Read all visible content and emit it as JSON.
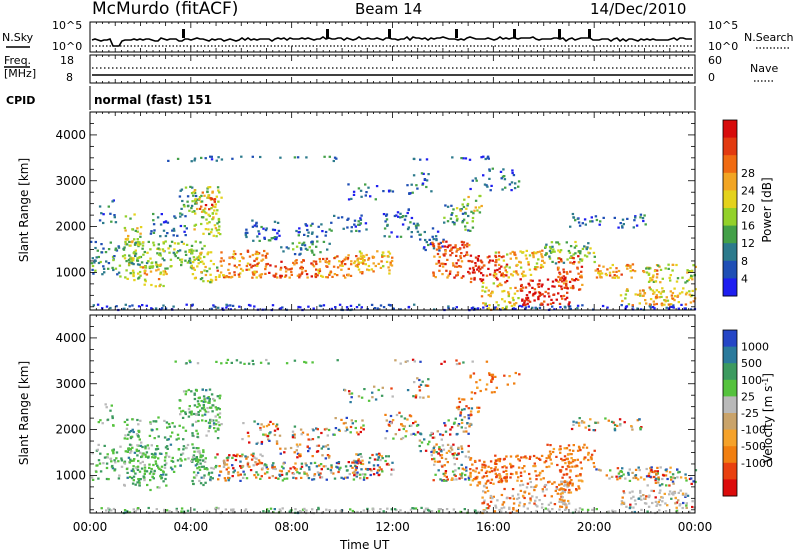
{
  "header": {
    "station": "McMurdo (fitACF)",
    "beam": "Beam 14",
    "date": "14/Dec/2010"
  },
  "top_panels": {
    "nsky_label": "N.Sky",
    "nsky_ticks": [
      "10^5",
      "10^0"
    ],
    "nsearch_label": "N.Search",
    "nsearch_ticks": [
      "10^5",
      "10^0"
    ],
    "freq_label_1": "Freq.",
    "freq_label_2": "[MHz]",
    "freq_ticks": [
      "18",
      "8"
    ],
    "nave_label": "Nave",
    "nave_ticks": [
      "60",
      "0"
    ],
    "cpid_label": "CPID",
    "cpid_value": "normal (fast) 151"
  },
  "chart_data": [
    {
      "type": "heatmap",
      "panel": "power",
      "xlabel": "",
      "ylabel": "Slant Range [km]",
      "y_ticks": [
        "1000",
        "2000",
        "3000",
        "4000"
      ],
      "ylim": [
        180,
        4500
      ],
      "xlim": [
        0,
        24
      ],
      "colorbar_label": "Power [dB]",
      "colorbar_ticks": [
        "4",
        "8",
        "12",
        "16",
        "20",
        "24",
        "28"
      ],
      "colorbar_colors": [
        "#1e1ef0",
        "#1f4fb5",
        "#2c7a8c",
        "#43a048",
        "#93d12a",
        "#e4d21c",
        "#f2a523",
        "#f06b12",
        "#e23a10",
        "#d70b0b"
      ]
    },
    {
      "type": "heatmap",
      "panel": "velocity",
      "xlabel": "Time UT",
      "ylabel": "Slant Range [km]",
      "x_ticks": [
        "00:00",
        "04:00",
        "08:00",
        "12:00",
        "16:00",
        "20:00",
        "00:00"
      ],
      "y_ticks": [
        "1000",
        "2000",
        "3000",
        "4000"
      ],
      "ylim": [
        180,
        4500
      ],
      "xlim": [
        0,
        24
      ],
      "colorbar_label": "Velocity [m s",
      "colorbar_label_sup": "-1",
      "colorbar_label_end": "]",
      "colorbar_ticks": [
        "1000",
        "500",
        "100",
        "25",
        "-25",
        "-100",
        "-500",
        "-1000"
      ],
      "colorbar_colors": [
        "#2546c6",
        "#2b7a9c",
        "#3c9a5f",
        "#55c23d",
        "#b9b9b9",
        "#c9a36a",
        "#f5a22a",
        "#f17f10",
        "#e9400f",
        "#dc0b0b"
      ]
    }
  ]
}
